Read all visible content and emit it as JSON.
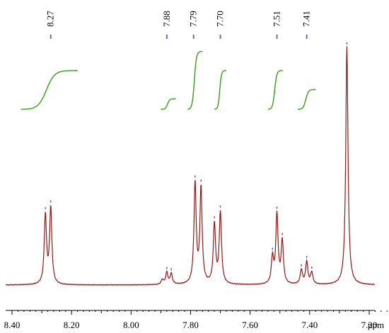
{
  "chart_data": {
    "type": "line",
    "title": "",
    "xlabel": "ppm",
    "ylabel": "",
    "x_reversed": true,
    "xlim": [
      8.4,
      7.12
    ],
    "x_ticks": [
      "8.40",
      "8.20",
      "8.00",
      "7.80",
      "7.60",
      "7.40",
      "7.20"
    ],
    "peak_labels": [
      "8.27",
      "7.88",
      "7.79",
      "7.70",
      "7.51",
      "7.41"
    ],
    "peaks": [
      {
        "ppm": 8.288,
        "height": 0.29
      },
      {
        "ppm": 8.27,
        "height": 0.32
      },
      {
        "ppm": 7.895,
        "height": 0.02
      },
      {
        "ppm": 7.88,
        "height": 0.05
      },
      {
        "ppm": 7.865,
        "height": 0.045
      },
      {
        "ppm": 7.785,
        "height": 0.42
      },
      {
        "ppm": 7.765,
        "height": 0.4
      },
      {
        "ppm": 7.72,
        "height": 0.25
      },
      {
        "ppm": 7.7,
        "height": 0.3
      },
      {
        "ppm": 7.525,
        "height": 0.11
      },
      {
        "ppm": 7.51,
        "height": 0.29
      },
      {
        "ppm": 7.492,
        "height": 0.18
      },
      {
        "ppm": 7.428,
        "height": 0.06
      },
      {
        "ppm": 7.41,
        "height": 0.095
      },
      {
        "ppm": 7.393,
        "height": 0.05
      },
      {
        "ppm": 7.275,
        "height": 1.0
      }
    ],
    "integrals": [
      {
        "from": 8.37,
        "to": 8.18,
        "rise": 0.35
      },
      {
        "from": 7.9,
        "to": 7.85,
        "rise": 0.1
      },
      {
        "from": 7.81,
        "to": 7.76,
        "rise": 0.5
      },
      {
        "from": 7.72,
        "to": 7.68,
        "rise": 0.38
      },
      {
        "from": 7.54,
        "to": 7.49,
        "rise": 0.38
      },
      {
        "from": 7.44,
        "to": 7.38,
        "rise": 0.18
      }
    ],
    "colors": {
      "spectrum": "#8b1a1a",
      "integral": "#3a9a1e",
      "peak_marker": "#5a5ad6",
      "axis": "#000000"
    }
  }
}
